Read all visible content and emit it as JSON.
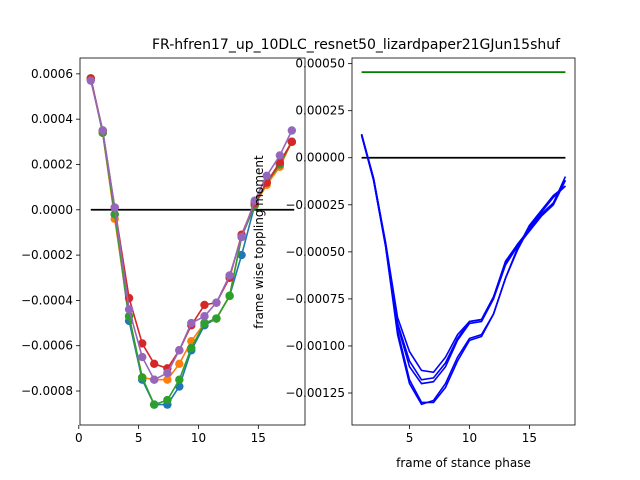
{
  "title": "FR-hfren17_up_10DLC_resnet50_lizardpaper21GJun15shuf",
  "chart_data": [
    {
      "type": "line",
      "xlabel": "",
      "ylabel": "",
      "xlim": [
        0.1,
        18.9
      ],
      "ylim": [
        -0.00095,
        0.00067
      ],
      "x_ticks": [
        0,
        5,
        10,
        15
      ],
      "y_ticks": [
        0.0006,
        0.0004,
        0.0002,
        0.0,
        -0.0002,
        -0.0004,
        -0.0006,
        -0.0008
      ],
      "x_tick_labels": [
        "0",
        "5",
        "10",
        "15"
      ],
      "y_tick_labels": [
        "0.0006",
        "0.0004",
        "0.0002",
        "0.0000",
        "−0.0002",
        "−0.0004",
        "−0.0006",
        "−0.0008"
      ],
      "hline": {
        "y": 0.0,
        "x_from": 1,
        "x_to": 18,
        "color": "#000000"
      },
      "series": [
        {
          "color": "#1f77b4",
          "marker": true,
          "x": [
            1,
            2,
            3,
            4.2,
            5.3,
            6.3,
            7.4,
            8.4,
            9.4,
            10.5,
            11.5,
            12.6,
            13.6,
            14.7,
            15.7,
            16.8,
            17.8
          ],
          "y": [
            0.00058,
            0.00034,
            -2e-05,
            -0.00049,
            -0.00075,
            -0.00086,
            -0.00086,
            -0.00078,
            -0.00062,
            -0.00051,
            -0.00048,
            -0.00038,
            -0.0002,
            2e-05,
            0.00012,
            0.0002,
            0.0003
          ]
        },
        {
          "color": "#ff7f0e",
          "marker": true,
          "x": [
            1,
            2,
            3,
            4.2,
            5.3,
            6.3,
            7.4,
            8.4,
            9.4,
            10.5,
            11.5,
            12.6,
            13.6,
            14.7,
            15.7,
            16.8,
            17.8
          ],
          "y": [
            0.00058,
            0.00034,
            -4e-05,
            -0.00047,
            -0.00074,
            -0.00075,
            -0.00075,
            -0.00068,
            -0.00058,
            -0.0005,
            -0.00048,
            -0.00038,
            -0.00012,
            2e-05,
            0.00011,
            0.00019,
            0.0003
          ]
        },
        {
          "color": "#2ca02c",
          "marker": true,
          "x": [
            1,
            2,
            3,
            4.2,
            5.3,
            6.3,
            7.4,
            8.4,
            9.4,
            10.5,
            11.5,
            12.6,
            13.6,
            14.7,
            15.7,
            16.8,
            17.8
          ],
          "y": [
            0.00058,
            0.00034,
            -2e-05,
            -0.00047,
            -0.00074,
            -0.00086,
            -0.00084,
            -0.00075,
            -0.00061,
            -0.0005,
            -0.00048,
            -0.00038,
            -0.00012,
            2e-05,
            0.00012,
            0.0002,
            0.0003
          ]
        },
        {
          "color": "#d62728",
          "marker": true,
          "x": [
            1,
            2,
            3,
            4.2,
            5.3,
            6.3,
            7.4,
            8.4,
            9.4,
            10.5,
            11.5,
            12.6,
            13.6,
            14.7,
            15.7,
            16.8,
            17.8
          ],
          "y": [
            0.00058,
            0.00035,
            1e-05,
            -0.00039,
            -0.00059,
            -0.00068,
            -0.0007,
            -0.00062,
            -0.00051,
            -0.00042,
            -0.00041,
            -0.0003,
            -0.00011,
            3e-05,
            0.00012,
            0.00021,
            0.0003
          ]
        },
        {
          "color": "#9467bd",
          "marker": true,
          "x": [
            1,
            2,
            3,
            4.2,
            5.3,
            6.3,
            7.4,
            8.4,
            9.4,
            10.5,
            11.5,
            12.6,
            13.6,
            14.7,
            15.7,
            16.8,
            17.8
          ],
          "y": [
            0.00057,
            0.00035,
            1e-05,
            -0.00044,
            -0.00065,
            -0.00075,
            -0.00072,
            -0.00062,
            -0.0005,
            -0.00047,
            -0.00041,
            -0.00029,
            -0.00012,
            4e-05,
            0.00015,
            0.00024,
            0.00035
          ]
        }
      ]
    },
    {
      "type": "line",
      "xlabel": "frame of stance phase",
      "ylabel": "frame wise toppling moment",
      "xlim": [
        0.2,
        18.8
      ],
      "ylim": [
        -0.00142,
        0.00053
      ],
      "x_ticks": [
        5,
        10,
        15
      ],
      "y_ticks": [
        0.0005,
        0.00025,
        0.0,
        -0.00025,
        -0.0005,
        -0.00075,
        -0.001,
        -0.00125
      ],
      "x_tick_labels": [
        "5",
        "10",
        "15"
      ],
      "y_tick_labels": [
        "0.00050",
        "0.00025",
        "0.00000",
        "−0.00025",
        "−0.00050",
        "−0.00075",
        "−0.00100",
        "−0.00125"
      ],
      "hlines": [
        {
          "y": 0.000455,
          "x_from": 1,
          "x_to": 18,
          "color": "#008000"
        },
        {
          "y": 0.0,
          "x_from": 1,
          "x_to": 18,
          "color": "#000000"
        }
      ],
      "series": [
        {
          "color": "#0000ff",
          "marker": false,
          "x": [
            1,
            2,
            3,
            4,
            5,
            6,
            7,
            8,
            9,
            10,
            11,
            12,
            13,
            14,
            15,
            16,
            17,
            18
          ],
          "y": [
            0.000125,
            -0.00011,
            -0.00045,
            -0.00085,
            -0.00103,
            -0.00113,
            -0.00114,
            -0.00106,
            -0.00094,
            -0.00087,
            -0.00086,
            -0.00074,
            -0.00055,
            -0.00046,
            -0.00038,
            -0.0003,
            -0.00024,
            -0.0001
          ]
        },
        {
          "color": "#0000ff",
          "marker": false,
          "x": [
            1,
            2,
            3,
            4,
            5,
            6,
            7,
            8,
            9,
            10,
            11,
            12,
            13,
            14,
            15,
            16,
            17,
            18
          ],
          "y": [
            0.000125,
            -0.00011,
            -0.00046,
            -0.00088,
            -0.00108,
            -0.00118,
            -0.00117,
            -0.00109,
            -0.00096,
            -0.00087,
            -0.00086,
            -0.00074,
            -0.00056,
            -0.00046,
            -0.00038,
            -0.0003,
            -0.00024,
            -0.00012
          ]
        },
        {
          "color": "#0000ff",
          "marker": false,
          "x": [
            1,
            2,
            3,
            4,
            5,
            6,
            7,
            8,
            9,
            10,
            11,
            12,
            13,
            14,
            15,
            16,
            17,
            18
          ],
          "y": [
            0.00012,
            -0.00012,
            -0.00047,
            -0.00092,
            -0.00118,
            -0.0013,
            -0.0013,
            -0.00122,
            -0.00108,
            -0.00097,
            -0.00095,
            -0.00083,
            -0.00064,
            -0.00048,
            -0.00036,
            -0.00028,
            -0.0002,
            -0.00015
          ]
        },
        {
          "color": "#0000ff",
          "marker": false,
          "x": [
            1,
            2,
            3,
            4,
            5,
            6,
            7,
            8,
            9,
            10,
            11,
            12,
            13,
            14,
            15,
            16,
            17,
            18
          ],
          "y": [
            0.00012,
            -0.00012,
            -0.00047,
            -0.00094,
            -0.0012,
            -0.00131,
            -0.00129,
            -0.0012,
            -0.00106,
            -0.00096,
            -0.00094,
            -0.00083,
            -0.00064,
            -0.00049,
            -0.00037,
            -0.00029,
            -0.00021,
            -0.00015
          ]
        },
        {
          "color": "#0000ff",
          "marker": false,
          "x": [
            1,
            2,
            3,
            4,
            5,
            6,
            7,
            8,
            9,
            10,
            11,
            12,
            13,
            14,
            15,
            16,
            17,
            18
          ],
          "y": [
            0.00012,
            -0.00011,
            -0.00046,
            -0.00089,
            -0.00111,
            -0.0012,
            -0.00119,
            -0.00111,
            -0.00097,
            -0.00088,
            -0.00087,
            -0.00075,
            -0.00057,
            -0.00047,
            -0.00039,
            -0.00031,
            -0.00025,
            -0.00012
          ]
        }
      ]
    }
  ]
}
